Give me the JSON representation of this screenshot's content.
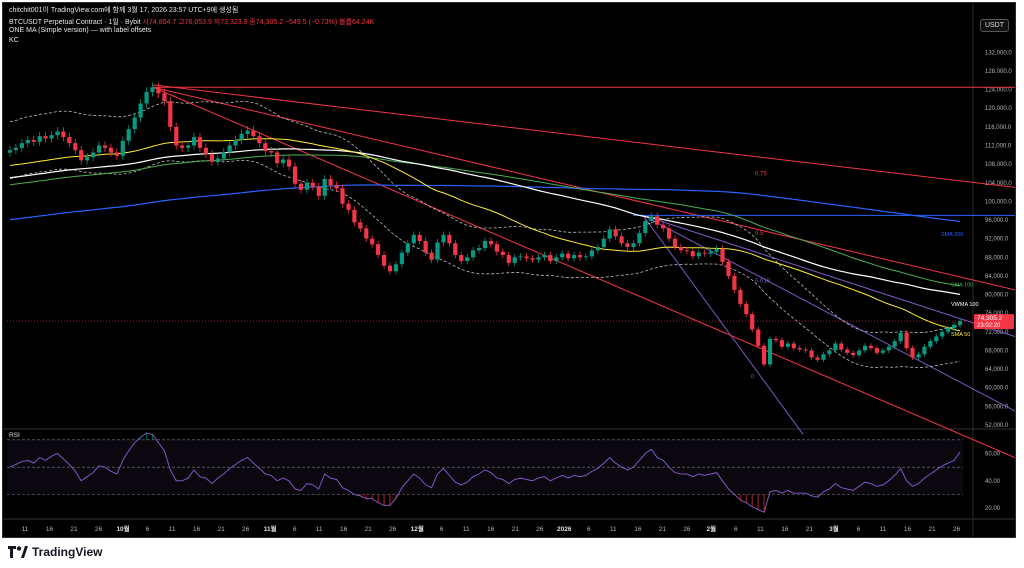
{
  "header": {
    "published": "chitchit001이 TradingView.com에 함께 3월 17, 2026 23:57 UTC+9에 생성됨",
    "symbol": "BTCUSDT Perpetual Contract · 1일 · Bybit",
    "ohlc": "시74,854.7 고76,053.9 저73,323.9 종74,305.2 −549.5 (−0.73%) 볼륨64.24K",
    "indicator1": "ONE MA (Simple version) — with label offsets",
    "indicator2": "KC",
    "currency": "USDT"
  },
  "footer": {
    "logo_text": "TradingView"
  },
  "colors": {
    "up": "#089981",
    "down": "#f23645",
    "sma200": "#2962ff",
    "sma100": "#4caf50",
    "vwma100": "#ffffff",
    "sma50": "#ffeb3b",
    "kc": "#bdbdbd",
    "fib": "#f23645",
    "fan": "#7e57c2",
    "rsi": "#7e57c2",
    "background": "#000000"
  },
  "chart_data": [
    {
      "type": "candlestick",
      "title": "BTCUSDT Perpetual Contract · 1일 · Bybit",
      "ylim": [
        52000,
        134000
      ],
      "y_ticks": [
        "132,000.0",
        "128,000.0",
        "124,000.0",
        "120,000.0",
        "116,000.0",
        "112,000.0",
        "108,000.0",
        "104,000.0",
        "100,000.0",
        "96,000.0",
        "92,000.0",
        "88,000.0",
        "84,000.0",
        "80,000.0",
        "76,000.0",
        "72,000.0",
        "68,000.0",
        "64,000.0",
        "60,000.0",
        "56,000.0",
        "52,000.0"
      ],
      "x_ticks": [
        "11",
        "16",
        "21",
        "26",
        "10월",
        "6",
        "11",
        "16",
        "21",
        "26",
        "11월",
        "6",
        "11",
        "16",
        "21",
        "26",
        "12월",
        "6",
        "11",
        "16",
        "21",
        "26",
        "2026",
        "6",
        "11",
        "16",
        "21",
        "26",
        "2월",
        "6",
        "11",
        "16",
        "21",
        "3월",
        "6",
        "11",
        "16",
        "21",
        "26"
      ],
      "close": [
        111000,
        111500,
        112500,
        113200,
        112800,
        114000,
        113500,
        114200,
        115000,
        113800,
        112500,
        111000,
        108800,
        109500,
        110500,
        112000,
        111500,
        110500,
        109800,
        113000,
        115500,
        118000,
        121000,
        123500,
        124500,
        123200,
        121500,
        116000,
        112000,
        111500,
        112000,
        113800,
        111500,
        110200,
        108500,
        109200,
        110500,
        112000,
        113200,
        114500,
        115200,
        114000,
        112500,
        110800,
        110500,
        108200,
        109000,
        107500,
        103800,
        102500,
        104000,
        103200,
        101200,
        104800,
        103500,
        102800,
        99500,
        98200,
        95500,
        94200,
        92000,
        90800,
        88500,
        86200,
        85000,
        86500,
        89000,
        91000,
        92800,
        91500,
        89000,
        87500,
        91200,
        92800,
        91000,
        88500,
        87200,
        88000,
        89500,
        90000,
        91500,
        90800,
        89200,
        88500,
        86800,
        88000,
        88200,
        87800,
        87500,
        88000,
        88500,
        87200,
        88000,
        88800,
        87800,
        88500,
        88000,
        88200,
        89500,
        90200,
        92000,
        94000,
        92500,
        91000,
        90200,
        91000,
        93200,
        95800,
        96800,
        95000,
        94200,
        92000,
        90200,
        89500,
        89300,
        88200,
        89000,
        88800,
        89200,
        89800,
        87000,
        84000,
        81000,
        78000,
        75800,
        72500,
        69000,
        65000,
        70500,
        70200,
        68800,
        69500,
        68500,
        68200,
        68000,
        66500,
        66000,
        67200,
        68000,
        69500,
        68200,
        67500,
        67000,
        68000,
        69000,
        68500,
        67500,
        68000,
        68800,
        70000,
        71800,
        68500,
        66500,
        67200,
        68800,
        70000,
        71000,
        72000,
        72800,
        73500,
        74305
      ],
      "series": [
        {
          "name": "SMA 200",
          "values_at_right": 93000
        },
        {
          "name": "SMA 100",
          "values_at_right": 81800
        },
        {
          "name": "VWMA 100",
          "values_at_right": 78000
        },
        {
          "name": "SMA 50",
          "values_at_right": 71200
        }
      ],
      "price_label": "74,305.2",
      "countdown": "23:02:20",
      "fib_labels": [
        "0.75",
        "0.5",
        "0.618",
        "0"
      ]
    },
    {
      "type": "line",
      "title": "RSI",
      "ylim": [
        15,
        75
      ],
      "y_ticks": [
        "60.00",
        "40.00",
        "20.00"
      ],
      "upper_band": 70,
      "lower_band": 30,
      "values": [
        50,
        52,
        54,
        55,
        53,
        57,
        55,
        58,
        60,
        56,
        52,
        47,
        40,
        43,
        46,
        51,
        50,
        47,
        45,
        55,
        62,
        68,
        72,
        75,
        74,
        68,
        62,
        48,
        40,
        40,
        42,
        48,
        43,
        42,
        38,
        42,
        45,
        49,
        52,
        55,
        57,
        53,
        49,
        45,
        44,
        40,
        42,
        40,
        34,
        33,
        38,
        37,
        34,
        45,
        42,
        41,
        35,
        33,
        30,
        29,
        27,
        27,
        24,
        22,
        22,
        27,
        35,
        40,
        45,
        42,
        37,
        35,
        45,
        49,
        44,
        39,
        37,
        39,
        43,
        45,
        48,
        46,
        42,
        41,
        38,
        41,
        42,
        41,
        40,
        42,
        43,
        40,
        42,
        44,
        42,
        44,
        43,
        44,
        47,
        49,
        53,
        57,
        53,
        50,
        48,
        50,
        55,
        60,
        63,
        57,
        55,
        50,
        46,
        45,
        45,
        43,
        45,
        44,
        45,
        46,
        40,
        34,
        30,
        26,
        24,
        21,
        19,
        17,
        32,
        33,
        31,
        33,
        31,
        31,
        31,
        29,
        28,
        32,
        34,
        38,
        35,
        34,
        33,
        36,
        39,
        38,
        36,
        37,
        40,
        44,
        49,
        40,
        36,
        38,
        42,
        45,
        48,
        51,
        53,
        55,
        61
      ]
    }
  ]
}
